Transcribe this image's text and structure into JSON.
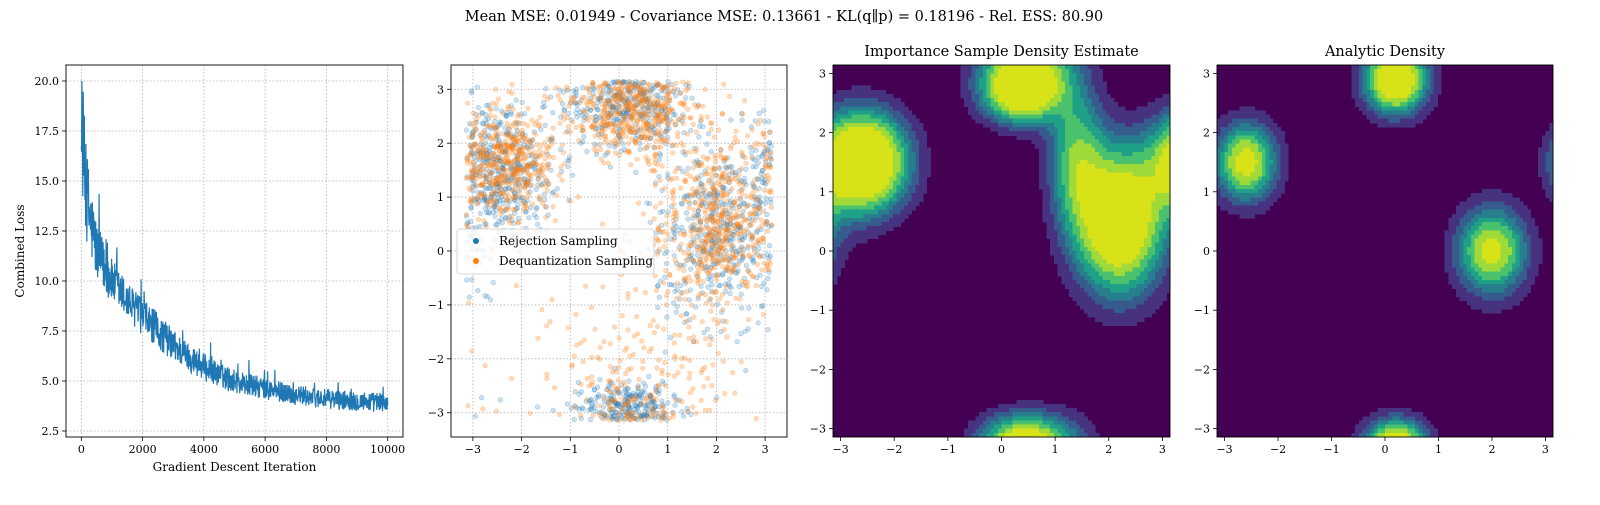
{
  "figure": {
    "title": "Mean MSE: 0.01949 - Covariance MSE: 0.13661 - KL(q∥p) = 0.18196 - Rel. ESS: 80.90",
    "colors": {
      "series_blue": "#1f77b4",
      "series_orange": "#ff7f0e",
      "grid": "#b0b0b0"
    }
  },
  "chart_data": [
    {
      "type": "line",
      "title": "",
      "xlabel": "Gradient Descent Iteration",
      "ylabel": "Combined Loss",
      "xlim": [
        -500,
        10500
      ],
      "ylim": [
        2.2,
        20.8
      ],
      "xticks": [
        0,
        2000,
        4000,
        6000,
        8000,
        10000
      ],
      "xtick_labels": [
        "0",
        "2000",
        "4000",
        "6000",
        "8000",
        "10000"
      ],
      "yticks": [
        2.5,
        5.0,
        7.5,
        10.0,
        12.5,
        15.0,
        17.5,
        20.0
      ],
      "ytick_labels": [
        "2.5",
        "5.0",
        "7.5",
        "10.0",
        "12.5",
        "15.0",
        "17.5",
        "20.0"
      ],
      "grid": true,
      "series": [
        {
          "color": "#1f77b4",
          "x": [
            0,
            50,
            100,
            200,
            300,
            500,
            800,
            1000,
            1500,
            2000,
            2500,
            3000,
            3500,
            4000,
            4500,
            5000,
            6000,
            7000,
            8000,
            9000,
            10000
          ],
          "y": [
            16.0,
            17.0,
            15.5,
            14.0,
            13.0,
            11.5,
            10.5,
            10.0,
            9.0,
            8.2,
            7.5,
            6.8,
            6.2,
            5.7,
            5.3,
            5.0,
            4.6,
            4.3,
            4.1,
            4.0,
            3.9
          ],
          "spread": [
            3.0,
            3.0,
            2.8,
            2.3,
            2.0,
            1.5,
            1.2,
            1.1,
            1.0,
            0.9,
            0.9,
            0.8,
            0.7,
            0.7,
            0.6,
            0.6,
            0.55,
            0.5,
            0.5,
            0.5,
            0.5
          ]
        }
      ]
    },
    {
      "type": "scatter",
      "title": "",
      "xlim": [
        -3.45,
        3.45
      ],
      "ylim": [
        -3.45,
        3.45
      ],
      "xticks": [
        -3,
        -2,
        -1,
        0,
        1,
        2,
        3
      ],
      "xtick_labels": [
        "−3",
        "−2",
        "−1",
        "0",
        "1",
        "2",
        "3"
      ],
      "yticks": [
        -3,
        -2,
        -1,
        0,
        1,
        2,
        3
      ],
      "ytick_labels": [
        "−3",
        "−2",
        "−1",
        "0",
        "1",
        "2",
        "3"
      ],
      "grid": true,
      "legend": {
        "placement": "center-left"
      },
      "series": [
        {
          "name": "Rejection Sampling",
          "color": "#1f77b4",
          "clusters": [
            {
              "cx": -2.4,
              "cy": 1.5,
              "sx": 0.55,
              "sy": 0.65,
              "weight": 0.3
            },
            {
              "cx": 0.2,
              "cy": 2.7,
              "sx": 0.6,
              "sy": 0.45,
              "weight": 0.25
            },
            {
              "cx": 2.1,
              "cy": 0.3,
              "sx": 0.7,
              "sy": 0.85,
              "weight": 0.3
            },
            {
              "cx": 0.2,
              "cy": -2.9,
              "sx": 0.5,
              "sy": 0.25,
              "weight": 0.15
            }
          ]
        },
        {
          "name": "Dequantization Sampling",
          "color": "#ff7f0e",
          "clusters": [
            {
              "cx": -2.4,
              "cy": 1.6,
              "sx": 0.55,
              "sy": 0.5,
              "weight": 0.28
            },
            {
              "cx": 0.3,
              "cy": 2.6,
              "sx": 0.6,
              "sy": 0.45,
              "weight": 0.3
            },
            {
              "cx": 2.0,
              "cy": 0.5,
              "sx": 0.6,
              "sy": 0.8,
              "weight": 0.3
            },
            {
              "cx": 0.5,
              "cy": -2.0,
              "sx": 1.3,
              "sy": 1.0,
              "weight": 0.12
            }
          ]
        }
      ]
    },
    {
      "type": "heatmap",
      "title": "Importance Sample Density Estimate",
      "xlim": [
        -3.14159,
        3.14159
      ],
      "ylim": [
        -3.14159,
        3.14159
      ],
      "xticks": [
        -3,
        -2,
        -1,
        0,
        1,
        2,
        3
      ],
      "xtick_labels": [
        "−3",
        "−2",
        "−1",
        "0",
        "1",
        "2",
        "3"
      ],
      "yticks": [
        -3,
        -2,
        -1,
        0,
        1,
        2,
        3
      ],
      "ytick_labels": [
        "−3",
        "−2",
        "−1",
        "0",
        "1",
        "2",
        "3"
      ],
      "colormap": [
        "#440154",
        "#46327e",
        "#365c8d",
        "#277f8e",
        "#1fa187",
        "#4ac16d",
        "#a0da39",
        "#d8e219"
      ],
      "levels": [
        0.07,
        0.14,
        0.21,
        0.28,
        0.36,
        0.45,
        0.55
      ],
      "components": [
        {
          "x": -2.6,
          "y": 1.5,
          "sx": 0.55,
          "sy": 0.55,
          "w": 1.0
        },
        {
          "x": 0.4,
          "y": 2.7,
          "sx": 0.5,
          "sy": 0.35,
          "w": 0.85
        },
        {
          "x": 2.2,
          "y": 0.5,
          "sx": 0.55,
          "sy": 0.8,
          "w": 0.85
        },
        {
          "x": 1.4,
          "y": 1.6,
          "sx": 0.35,
          "sy": 0.8,
          "w": 0.4
        },
        {
          "x": 0.5,
          "y": -3.1,
          "sx": 0.6,
          "sy": 0.3,
          "w": 0.35
        }
      ]
    },
    {
      "type": "heatmap",
      "title": "Analytic Density",
      "xlim": [
        -3.14159,
        3.14159
      ],
      "ylim": [
        -3.14159,
        3.14159
      ],
      "xticks": [
        -3,
        -2,
        -1,
        0,
        1,
        2,
        3
      ],
      "xtick_labels": [
        "−3",
        "−2",
        "−1",
        "0",
        "1",
        "2",
        "3"
      ],
      "yticks": [
        -3,
        -2,
        -1,
        0,
        1,
        2,
        3
      ],
      "ytick_labels": [
        "−3",
        "−2",
        "−1",
        "0",
        "1",
        "2",
        "3"
      ],
      "colormap": [
        "#440154",
        "#46327e",
        "#365c8d",
        "#277f8e",
        "#1fa187",
        "#4ac16d",
        "#a0da39",
        "#d8e219"
      ],
      "levels": [
        0.07,
        0.17,
        0.28,
        0.4,
        0.52,
        0.66,
        0.85
      ],
      "components": [
        {
          "x": -2.6,
          "y": 1.5,
          "sx": 0.35,
          "sy": 0.4,
          "w": 1.0
        },
        {
          "x": 0.2,
          "y": 2.75,
          "sx": 0.35,
          "sy": 0.3,
          "w": 0.95
        },
        {
          "x": 2.0,
          "y": 0.0,
          "sx": 0.4,
          "sy": 0.45,
          "w": 0.95
        },
        {
          "x": 0.2,
          "y": -3.2,
          "sx": 0.35,
          "sy": 0.25,
          "w": 0.7
        }
      ]
    }
  ]
}
